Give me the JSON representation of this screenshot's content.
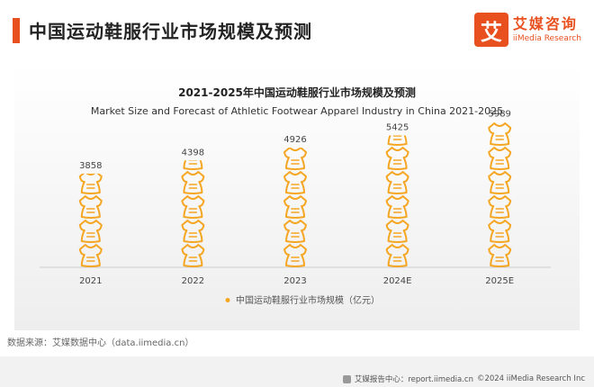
{
  "header": {
    "title": "中国运动鞋服行业市场规模及预测"
  },
  "brand": {
    "icon_char": "艾",
    "name_cn": "艾媒咨询",
    "name_en": "iiMedia Research"
  },
  "footer": {
    "source": "数据来源：艾媒数据中心（data.iimedia.cn）",
    "site": "艾媒报告中心：report.iimedia.cn",
    "copyright": "©2024  iiMedia Research  Inc"
  },
  "colors": {
    "accent": "#e8511f",
    "icon": "#f5a623",
    "axis": "#cccccc"
  },
  "chart_data": {
    "type": "bar",
    "mark": "pictogram",
    "icon": "sport-shirt-icon",
    "title": "2021-2025年中国运动鞋服行业市场规模及预测",
    "subtitle": "Market Size and Forecast of Athletic Footwear Apparel Industry in China 2021-2025",
    "categories": [
      "2021",
      "2022",
      "2023",
      "2024E",
      "2025E"
    ],
    "series": [
      {
        "name": "中国运动鞋服行业市场规模（亿元）",
        "values": [
          3858,
          4398,
          4926,
          5425,
          5989
        ]
      }
    ],
    "ylim": [
      0,
      6000
    ],
    "grid": false,
    "legend_position": "bottom"
  }
}
